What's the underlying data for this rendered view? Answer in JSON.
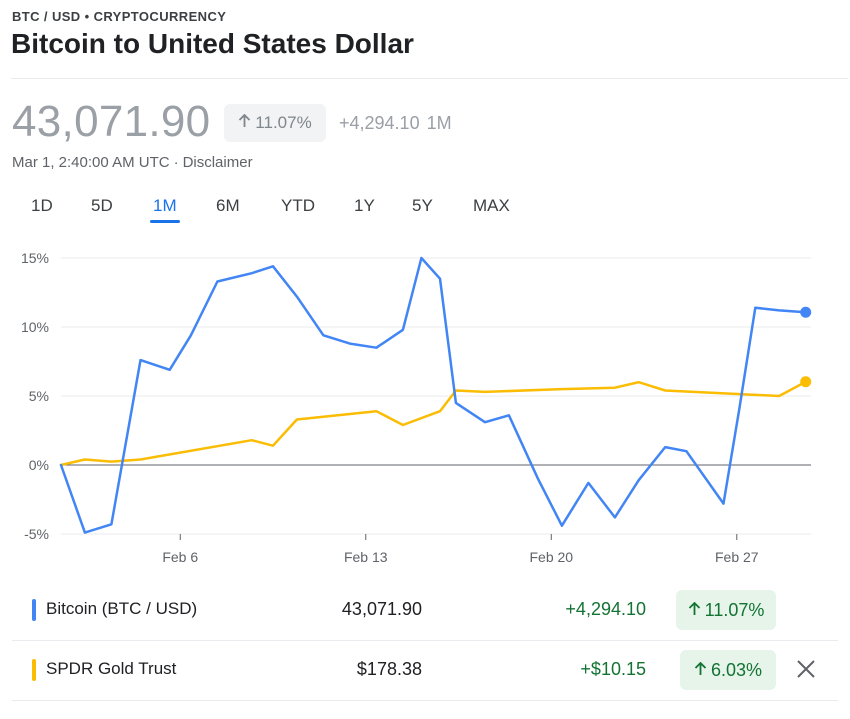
{
  "header": {
    "eyebrow": "BTC / USD • CRYPTOCURRENCY",
    "title": "Bitcoin to United States Dollar"
  },
  "quote": {
    "price": "43,071.90",
    "percent_change": "11.07%",
    "abs_change": "+4,294.10",
    "period": "1M",
    "timestamp": "Mar 1, 2:40:00 AM UTC",
    "separator": "·",
    "disclaimer": "Disclaimer"
  },
  "range_tabs": {
    "items": [
      "1D",
      "5D",
      "1M",
      "6M",
      "YTD",
      "1Y",
      "5Y",
      "MAX"
    ],
    "selected": "1M"
  },
  "chart_data": {
    "type": "line",
    "ylim": [
      -5,
      15
    ],
    "y_ticks": [
      15,
      10,
      5,
      0,
      -5
    ],
    "y_tick_labels": [
      "15%",
      "10%",
      "5%",
      "0%",
      "-5%"
    ],
    "x_ticks": [
      7,
      14,
      21,
      28
    ],
    "x_tick_labels": [
      "Feb 6",
      "Feb 13",
      "Feb 20",
      "Feb 27"
    ],
    "xlim": [
      2.5,
      30.8
    ],
    "series": [
      {
        "name": "Bitcoin (BTC / USD)",
        "color": "#4285f4",
        "x": [
          2.5,
          3.4,
          4.4,
          5.5,
          6.6,
          7.4,
          8.4,
          9.7,
          10.5,
          11.4,
          12.4,
          13.4,
          14.4,
          15.4,
          16.1,
          16.8,
          17.4,
          18.5,
          19.4,
          20.5,
          21.4,
          22.4,
          23.4,
          24.3,
          25.3,
          26.1,
          27.5,
          28.1,
          28.7,
          29.6,
          30.6
        ],
        "y": [
          0,
          -4.9,
          -4.3,
          7.6,
          6.9,
          9.4,
          13.3,
          13.9,
          14.4,
          12.2,
          9.4,
          8.8,
          8.5,
          9.8,
          15.0,
          13.5,
          4.5,
          3.1,
          3.6,
          -1.0,
          -4.4,
          -1.3,
          -3.8,
          -1.1,
          1.3,
          1.0,
          -2.8,
          4.1,
          11.4,
          11.2,
          11.07
        ]
      },
      {
        "name": "SPDR Gold Trust",
        "color": "#fbbc04",
        "x": [
          2.5,
          3.4,
          4.4,
          5.5,
          9.7,
          10.5,
          11.4,
          12.4,
          14.4,
          15.4,
          16.8,
          17.4,
          18.5,
          21.4,
          23.4,
          24.3,
          25.3,
          29.6,
          30.6
        ],
        "y": [
          0,
          0.4,
          0.25,
          0.4,
          1.8,
          1.4,
          3.3,
          3.5,
          3.9,
          2.9,
          3.9,
          5.4,
          5.3,
          5.5,
          5.6,
          6.0,
          5.4,
          5.0,
          6.03
        ]
      }
    ],
    "zero_line": true
  },
  "comparison": [
    {
      "name": "Bitcoin (BTC / USD)",
      "value": "43,071.90",
      "abs_change": "+4,294.10",
      "percent_change": "11.07%",
      "color": "#4285f4",
      "removable": false
    },
    {
      "name": "SPDR Gold Trust",
      "value": "$178.38",
      "abs_change": "+$10.15",
      "percent_change": "6.03%",
      "color": "#fbbc04",
      "removable": true
    }
  ],
  "icons": {
    "up_arrow": "arrow-up-icon",
    "close": "close-icon"
  },
  "colors": {
    "accent": "#1a73e8",
    "positive": "#137333",
    "positive_bg": "#e6f4ea",
    "muted": "#9aa0a6"
  }
}
